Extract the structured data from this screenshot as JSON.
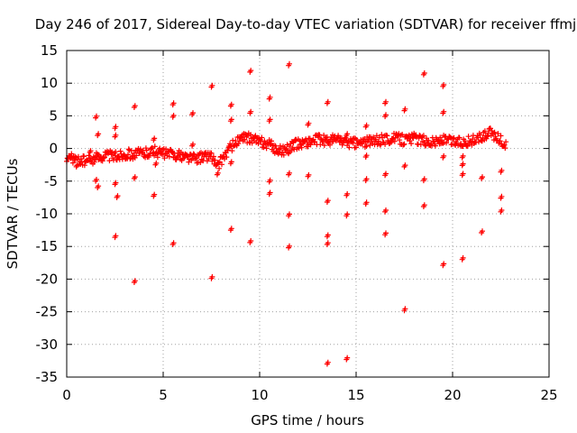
{
  "chart_data": {
    "type": "scatter",
    "title": "Day 246 of 2017, Sidereal Day-to-day VTEC variation (SDTVAR) for receiver ffmj",
    "xlabel": "GPS time / hours",
    "ylabel": "SDTVAR / TECUs",
    "xlim": [
      0,
      25
    ],
    "ylim": [
      -35,
      15
    ],
    "xticks": [
      "0",
      "5",
      "10",
      "15",
      "20",
      "25"
    ],
    "yticks": [
      "15",
      "10",
      "5",
      "0",
      "-5",
      "-10",
      "-15",
      "-20",
      "-25",
      "-30",
      "-35"
    ],
    "grid": true,
    "marker": "+",
    "series": [
      {
        "name": "SDTVAR",
        "color": "#ff0000",
        "baseline": [
          [
            0.0,
            -1.2
          ],
          [
            0.5,
            -1.8
          ],
          [
            1.0,
            -2.0
          ],
          [
            1.5,
            -1.4
          ],
          [
            2.0,
            -1.0
          ],
          [
            2.5,
            -1.2
          ],
          [
            3.0,
            -0.9
          ],
          [
            3.5,
            -0.8
          ],
          [
            4.0,
            -0.7
          ],
          [
            4.5,
            -0.4
          ],
          [
            5.0,
            -0.8
          ],
          [
            5.5,
            -0.9
          ],
          [
            6.0,
            -1.2
          ],
          [
            6.5,
            -1.5
          ],
          [
            7.0,
            -1.4
          ],
          [
            7.5,
            -1.0
          ],
          [
            7.8,
            -3.0
          ],
          [
            8.0,
            -1.8
          ],
          [
            8.5,
            0.2
          ],
          [
            9.0,
            1.4
          ],
          [
            9.5,
            1.6
          ],
          [
            10.0,
            1.0
          ],
          [
            10.5,
            0.6
          ],
          [
            11.0,
            -0.4
          ],
          [
            11.5,
            0.0
          ],
          [
            12.0,
            0.8
          ],
          [
            12.5,
            1.0
          ],
          [
            13.0,
            1.4
          ],
          [
            13.5,
            1.2
          ],
          [
            14.0,
            1.5
          ],
          [
            14.5,
            1.0
          ],
          [
            15.0,
            0.8
          ],
          [
            15.5,
            1.0
          ],
          [
            16.0,
            1.2
          ],
          [
            16.5,
            1.4
          ],
          [
            17.0,
            1.6
          ],
          [
            17.5,
            1.3
          ],
          [
            18.0,
            1.6
          ],
          [
            18.5,
            1.2
          ],
          [
            19.0,
            1.0
          ],
          [
            19.5,
            1.3
          ],
          [
            20.0,
            1.1
          ],
          [
            20.5,
            1.0
          ],
          [
            21.0,
            1.2
          ],
          [
            21.5,
            1.6
          ],
          [
            22.0,
            2.4
          ],
          [
            22.5,
            1.2
          ],
          [
            22.8,
            0.4
          ]
        ],
        "outliers": [
          [
            0.2,
            -1.5
          ],
          [
            0.5,
            -2.8
          ],
          [
            1.2,
            -0.6
          ],
          [
            1.5,
            4.7
          ],
          [
            1.5,
            -5.0
          ],
          [
            1.6,
            -6.0
          ],
          [
            1.6,
            2.0
          ],
          [
            2.5,
            3.1
          ],
          [
            2.5,
            1.8
          ],
          [
            2.5,
            -5.5
          ],
          [
            2.6,
            -7.5
          ],
          [
            2.5,
            -13.6
          ],
          [
            3.5,
            6.3
          ],
          [
            3.5,
            -4.6
          ],
          [
            3.5,
            -20.5
          ],
          [
            4.5,
            1.3
          ],
          [
            4.6,
            -2.5
          ],
          [
            4.5,
            -7.3
          ],
          [
            5.5,
            6.7
          ],
          [
            5.5,
            4.8
          ],
          [
            5.5,
            -14.7
          ],
          [
            6.5,
            5.2
          ],
          [
            6.5,
            0.4
          ],
          [
            7.5,
            9.4
          ],
          [
            7.5,
            -19.9
          ],
          [
            7.8,
            -4.0
          ],
          [
            8.5,
            6.5
          ],
          [
            8.5,
            4.2
          ],
          [
            8.5,
            -2.3
          ],
          [
            8.5,
            -12.5
          ],
          [
            9.5,
            11.7
          ],
          [
            9.5,
            5.4
          ],
          [
            9.5,
            -14.4
          ],
          [
            10.5,
            7.6
          ],
          [
            10.5,
            4.2
          ],
          [
            10.5,
            -5.1
          ],
          [
            10.5,
            -7.0
          ],
          [
            11.5,
            12.7
          ],
          [
            11.5,
            -4.0
          ],
          [
            11.5,
            -10.3
          ],
          [
            11.5,
            -15.2
          ],
          [
            12.5,
            3.6
          ],
          [
            12.5,
            -4.3
          ],
          [
            13.5,
            6.9
          ],
          [
            13.5,
            -8.2
          ],
          [
            13.5,
            -13.5
          ],
          [
            13.5,
            -14.7
          ],
          [
            13.5,
            -33.0
          ],
          [
            14.5,
            2.0
          ],
          [
            14.5,
            -7.2
          ],
          [
            14.5,
            -10.3
          ],
          [
            14.5,
            -32.3
          ],
          [
            15.5,
            3.3
          ],
          [
            15.5,
            -1.3
          ],
          [
            15.5,
            -4.9
          ],
          [
            15.5,
            -8.5
          ],
          [
            16.5,
            6.9
          ],
          [
            16.5,
            4.9
          ],
          [
            16.5,
            -4.1
          ],
          [
            16.5,
            -9.7
          ],
          [
            16.5,
            -13.2
          ],
          [
            17.5,
            5.8
          ],
          [
            17.5,
            -2.8
          ],
          [
            17.5,
            -24.8
          ],
          [
            18.5,
            11.3
          ],
          [
            18.5,
            -4.9
          ],
          [
            18.5,
            -8.9
          ],
          [
            19.5,
            9.5
          ],
          [
            19.5,
            5.4
          ],
          [
            19.5,
            -1.4
          ],
          [
            19.5,
            -17.9
          ],
          [
            20.5,
            -1.4
          ],
          [
            20.5,
            -2.6
          ],
          [
            20.5,
            -4.1
          ],
          [
            20.5,
            -17.0
          ],
          [
            21.5,
            -4.6
          ],
          [
            21.5,
            -12.9
          ],
          [
            22.5,
            -3.6
          ],
          [
            22.5,
            -7.6
          ],
          [
            22.5,
            -9.7
          ]
        ]
      }
    ]
  }
}
